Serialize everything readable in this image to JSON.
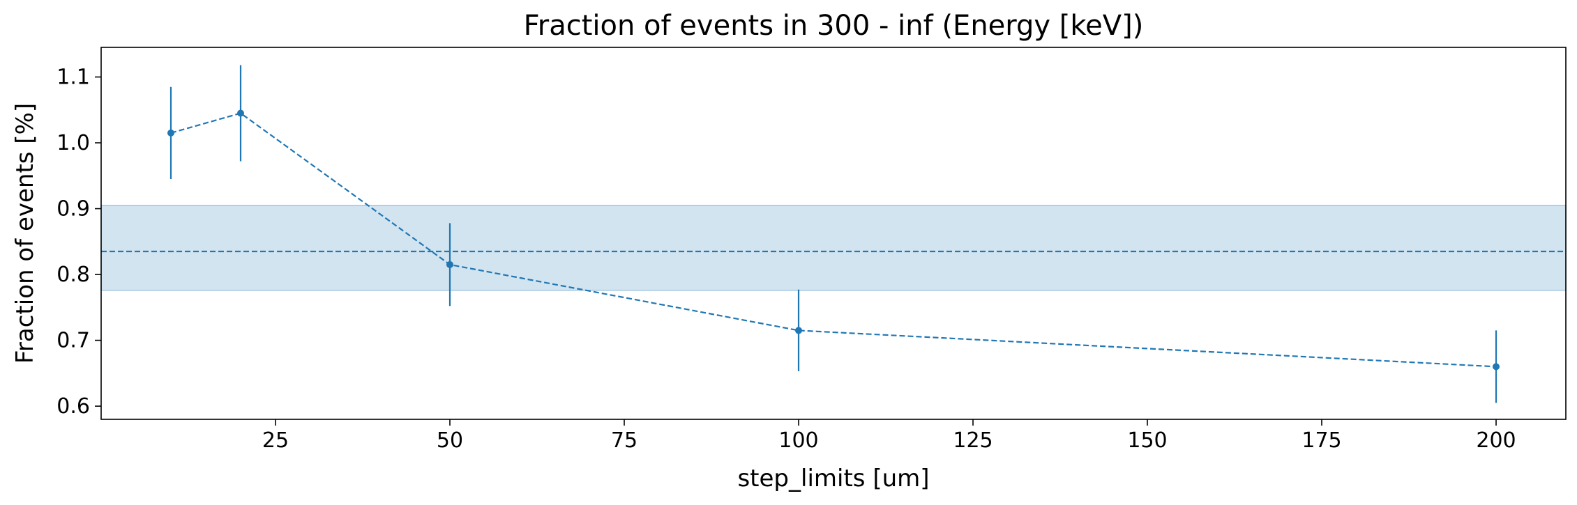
{
  "chart_data": {
    "type": "line",
    "title": "Fraction of events in 300 - inf (Energy [keV])",
    "xlabel": "step_limits [um]",
    "ylabel": "Fraction of events [%]",
    "xlim": [
      0,
      210
    ],
    "ylim": [
      0.58,
      1.145
    ],
    "xticks": [
      25,
      50,
      75,
      100,
      125,
      150,
      175,
      200
    ],
    "xtick_labels": [
      "25",
      "50",
      "75",
      "100",
      "125",
      "150",
      "175",
      "200"
    ],
    "yticks": [
      0.6,
      0.7,
      0.8,
      0.9,
      1.0,
      1.1
    ],
    "ytick_labels": [
      "0.6",
      "0.7",
      "0.8",
      "0.9",
      "1.0",
      "1.1"
    ],
    "grid": false,
    "series": [
      {
        "x": [
          10,
          20,
          50,
          100,
          200
        ],
        "y": [
          1.015,
          1.045,
          0.815,
          0.715,
          0.66
        ],
        "yerr": [
          0.07,
          0.073,
          0.063,
          0.062,
          0.055
        ],
        "line_style": "dashed",
        "marker": "circle",
        "color": "#1f77b4"
      }
    ],
    "reference_line": {
      "y": 0.835,
      "style": "dashed",
      "color": "#1f77b4"
    },
    "reference_band": {
      "y_min": 0.776,
      "y_max": 0.905,
      "color": "#1f77b4",
      "opacity": 0.2
    }
  }
}
